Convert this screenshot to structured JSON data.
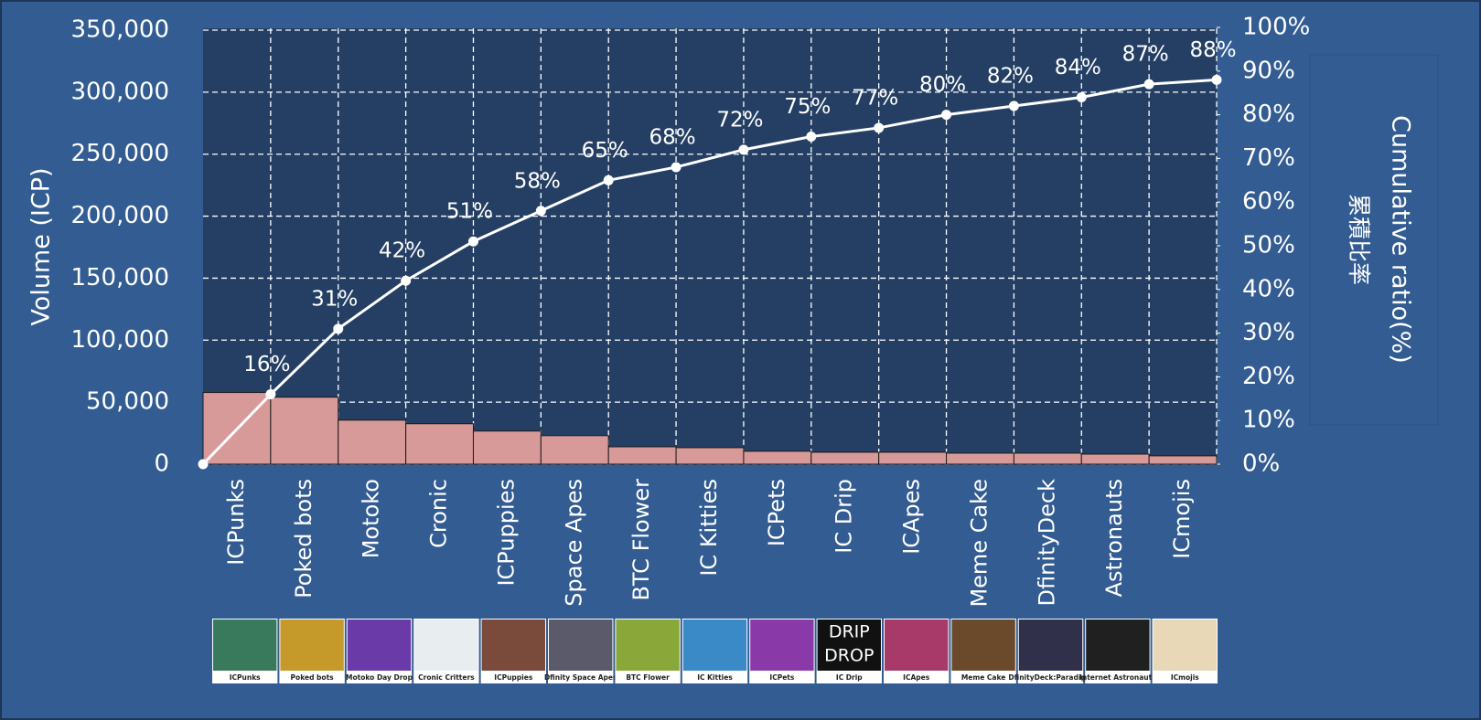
{
  "chart_data": {
    "type": "bar",
    "y_label": "Volume (ICP)",
    "y2_label": "Cumulative ratio(%)",
    "y2_label_ja": "累積比率",
    "categories": [
      "ICPunks",
      "Poked bots",
      "Motoko",
      "Cronic",
      "ICPuppies",
      "Space Apes",
      "BTC Flower",
      "IC Kitties",
      "ICPets",
      "IC Drip",
      "ICApes",
      "Meme Cake",
      "DfinityDeck",
      "Astronauts",
      "ICmojis"
    ],
    "series": [
      {
        "type": "bar",
        "color": "#d89a98",
        "values": [
          57800,
          54000,
          35500,
          32600,
          26700,
          23000,
          14000,
          13300,
          10400,
          9600,
          9600,
          8900,
          8900,
          8100,
          6700
        ]
      },
      {
        "type": "line",
        "axis": "y2",
        "color": "#ffffff",
        "values": [
          16,
          31,
          42,
          51,
          58,
          65,
          68,
          72,
          75,
          77,
          80,
          82,
          84,
          87,
          88
        ],
        "value_labels": [
          "16%",
          "31%",
          "42%",
          "51%",
          "58%",
          "65%",
          "68%",
          "72%",
          "75%",
          "77%",
          "80%",
          "82%",
          "84%",
          "87%",
          "88%"
        ]
      }
    ],
    "ylim": [
      0,
      350000
    ],
    "yticks": [
      0,
      {
        "value": 50000,
        "label": "50,000"
      },
      {
        "value": 100000,
        "label": "100,000"
      },
      {
        "value": 150000,
        "label": "150,000"
      },
      {
        "value": 200000,
        "label": "200,000"
      },
      {
        "value": 250000,
        "label": "250,000"
      },
      {
        "value": 300000,
        "label": "300,000"
      },
      {
        "value": 350000,
        "label": "350,000"
      }
    ],
    "y2lim": [
      0,
      100
    ],
    "y2ticks": [
      {
        "value": 0,
        "label": "0%"
      },
      {
        "value": 10,
        "label": "10%"
      },
      {
        "value": 20,
        "label": "20%"
      },
      {
        "value": 30,
        "label": "30%"
      },
      {
        "value": 40,
        "label": "40%"
      },
      {
        "value": 50,
        "label": "50%"
      },
      {
        "value": 60,
        "label": "60%"
      },
      {
        "value": 70,
        "label": "70%"
      },
      {
        "value": 80,
        "label": "80%"
      },
      {
        "value": 90,
        "label": "90%"
      },
      {
        "value": 100,
        "label": "100%"
      }
    ],
    "grid": true,
    "thumbnails": [
      "ICPunks",
      "Poked bots",
      "Motoko Day Drop",
      "Cronic Critters",
      "ICPuppies",
      "Dfinity Space Apes",
      "BTC Flower",
      "IC Kitties",
      "ICPets",
      "IC Drip",
      "ICApes",
      "Meme Cake",
      "DfinityDeck:Paradigm",
      "Internet Astronauts",
      "ICmojis"
    ],
    "thumbnail_text": [
      "DRIP",
      "DROP"
    ]
  }
}
